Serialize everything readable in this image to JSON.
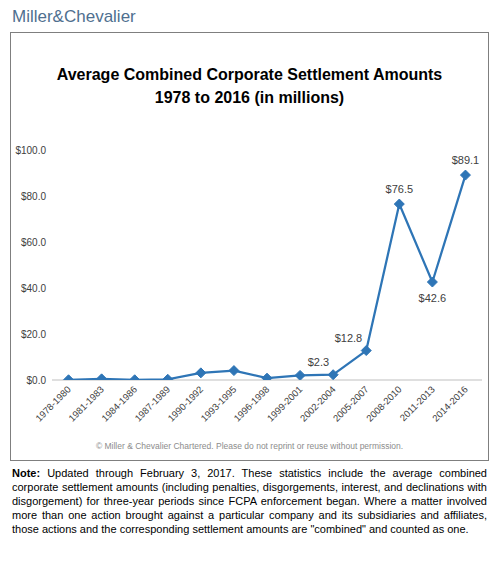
{
  "chart_data": {
    "type": "line",
    "title": "Average Combined Corporate Settlement Amounts",
    "subtitle": "1978 to 2016 (in millions)",
    "categories": [
      "1978-1980",
      "1981-1983",
      "1984-1986",
      "1987-1989",
      "1990-1992",
      "1993-1995",
      "1996-1998",
      "1999-2001",
      "2002-2004",
      "2005-2007",
      "2008-2010",
      "2011-2013",
      "2014-2016"
    ],
    "values": [
      0.1,
      0.5,
      0.1,
      0.3,
      3.1,
      4.1,
      0.8,
      2.0,
      2.3,
      12.8,
      76.5,
      42.6,
      89.1
    ],
    "value_labels": [
      null,
      null,
      null,
      null,
      null,
      null,
      null,
      null,
      "$2.3",
      "$12.8",
      "$76.5",
      "$42.6",
      "$89.1"
    ],
    "data_labels": true,
    "color": "#2e75b6",
    "marker": "diamond",
    "grid": false,
    "ylim": [
      0,
      100
    ],
    "yticks": [
      {
        "value": 0,
        "label": "$0.0"
      },
      {
        "value": 20,
        "label": "$20.0"
      },
      {
        "value": 40,
        "label": "$40.0"
      },
      {
        "value": 60,
        "label": "$60.0"
      },
      {
        "value": 80,
        "label": "$80.0"
      },
      {
        "value": 100,
        "label": "$100.0"
      }
    ],
    "annotations": {
      "logo": "Miller&Chevalier",
      "copyright": "© Miller & Chevalier Chartered. Please do not reprint or reuse without permission.",
      "note_label": "Note:",
      "note": "Updated through February 3, 2017.  These statistics include the average combined corporate settlement amounts (including penalties, disgorgements, interest, and declinations with disgorgement)  for three-year periods since FCPA enforcement began. Where a matter involved more than one action brought against a particular company and its subsidiaries and affiliates, those actions and the corresponding settlement amounts are \"combined\" and counted as one."
    }
  }
}
